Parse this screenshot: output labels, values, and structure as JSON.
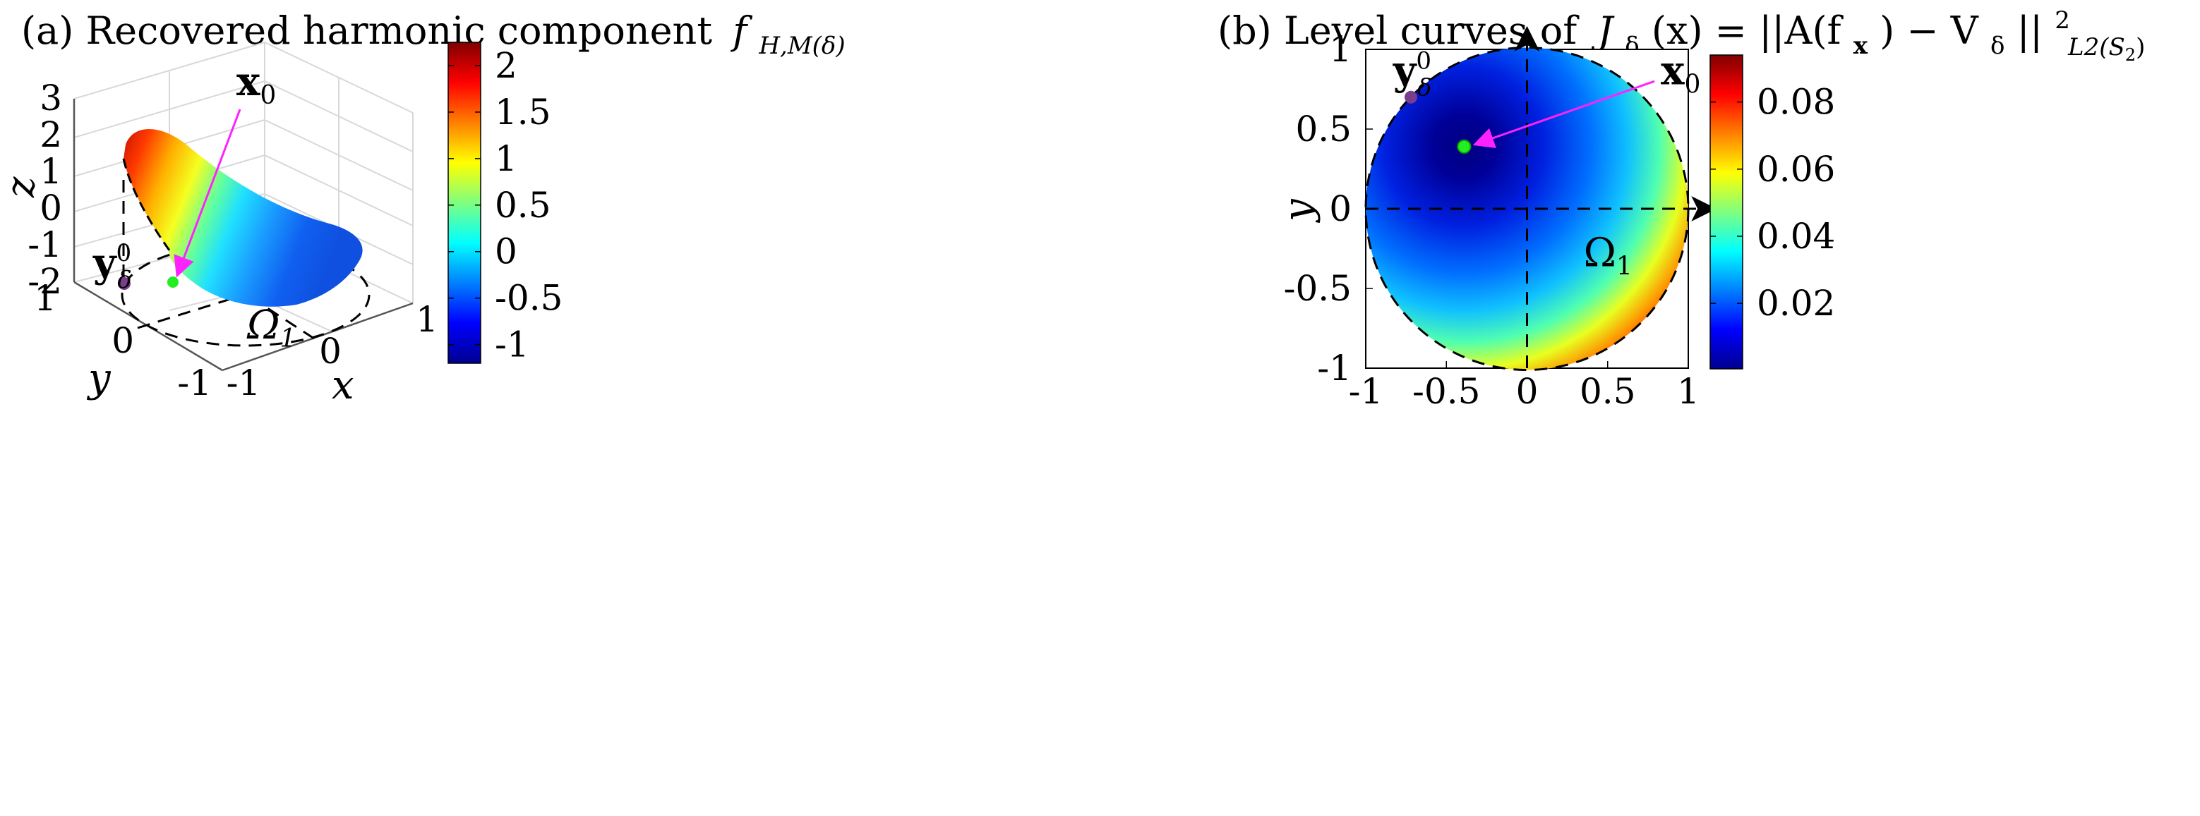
{
  "chart_data": [
    {
      "panel": "a",
      "type": "surface3d",
      "title_text": "(a) Recovered harmonic component",
      "title_math": "f",
      "title_sub": "H,M(δ)",
      "xlabel": "x",
      "ylabel": "y",
      "zlabel": "z",
      "x_ticks": [
        "-1",
        "0",
        "1"
      ],
      "y_ticks": [
        "-1",
        "0",
        "1"
      ],
      "z_ticks": [
        "3",
        "2",
        "1",
        "0",
        "-1",
        "-2"
      ],
      "zlim": [
        -2,
        3
      ],
      "annotations": [
        {
          "label": "x",
          "sub": "0",
          "desc": "true source point (green)"
        },
        {
          "label": "y",
          "sup": "0",
          "sub": "δ",
          "desc": "initial guess (purple)"
        },
        {
          "label": "Ω",
          "sub": "1",
          "desc": "domain"
        }
      ],
      "colorbar": {
        "ticks": [
          "2",
          "1.5",
          "1",
          "0.5",
          "0",
          "-0.5",
          "-1"
        ],
        "values": [
          2,
          1.5,
          1,
          0.5,
          0,
          -0.5,
          -1
        ],
        "range": [
          -1.2,
          2.25
        ]
      },
      "colors": {
        "marker_x0": "#22ee22",
        "marker_y0": "#7a3c8c",
        "arrow": "#ff22ff"
      }
    },
    {
      "panel": "b",
      "type": "heatmap",
      "title_text": "(b) Level curves of",
      "title_math": "J",
      "title_sub": "δ",
      "title_rest": "(x) = ||A(f",
      "title_rest2": ") − V",
      "title_rest3": "||",
      "title_sup": "2",
      "title_sub2": "L2(S",
      "title_sub3": "2",
      "xlabel": "",
      "ylabel": "y",
      "x_ticks": [
        "-1",
        "-0.5",
        "0",
        "0.5",
        "1"
      ],
      "x_values": [
        -1,
        -0.5,
        0,
        0.5,
        1
      ],
      "y_ticks": [
        "1",
        "0.5",
        "0",
        "-0.5",
        "-1"
      ],
      "y_values": [
        1,
        0.5,
        0,
        -0.5,
        -1
      ],
      "xlim": [
        -1,
        1
      ],
      "ylim": [
        -1,
        1
      ],
      "points": [
        {
          "name": "x0",
          "x": -0.39,
          "y": 0.39
        },
        {
          "name": "y0_delta",
          "x": -0.72,
          "y": 0.7
        }
      ],
      "annotations": [
        {
          "label": "x",
          "sub": "0"
        },
        {
          "label": "y",
          "sup": "0",
          "sub": "δ"
        },
        {
          "label": "Ω",
          "sub": "1"
        }
      ],
      "colorbar": {
        "ticks": [
          "0.08",
          "0.06",
          "0.04",
          "0.02"
        ],
        "values": [
          0.08,
          0.06,
          0.04,
          0.02
        ],
        "range": [
          0.0005,
          0.094
        ]
      }
    }
  ]
}
